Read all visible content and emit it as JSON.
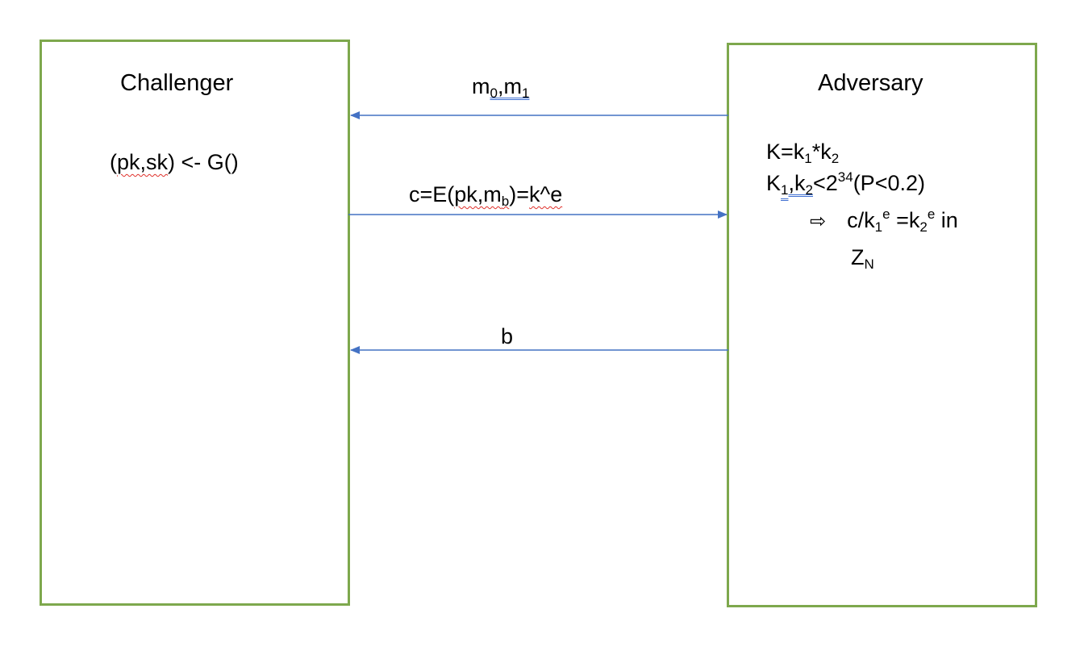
{
  "challenger": {
    "title": "Challenger",
    "keygen": {
      "pre": "(",
      "spell": "pk,sk",
      "post": ") <- G()"
    }
  },
  "adversary": {
    "title": "Adversary",
    "line1": {
      "a": "K=k",
      "s1": "1",
      "b": "*k",
      "s2": "2"
    },
    "line2": {
      "a": "K",
      "s1": "1",
      "b": ",",
      "g": "k",
      "s2": "2",
      "c": "<2",
      "sup": "34",
      "d": "(P<0.2)"
    },
    "line3": {
      "implies": "⇨",
      "a": "c/k",
      "s1": "1",
      "e1": "e",
      "b": " =k",
      "s2": "2",
      "e2": "e",
      "c": " in"
    },
    "line4": {
      "a": "Z",
      "sub": "N"
    }
  },
  "messages": {
    "m": {
      "a": "m",
      "g1": "0",
      "g2": ",m",
      "g3": "1"
    },
    "c": {
      "a": "c=E(",
      "s1": "pk,m",
      "s1sub": "b",
      "b": ")=",
      "s2": "k^e"
    },
    "b": "b"
  },
  "colors": {
    "box_border": "#7ea84d",
    "arrow": "#4472c4",
    "spell": "#e0302a",
    "grammar": "#3f6fd1"
  }
}
